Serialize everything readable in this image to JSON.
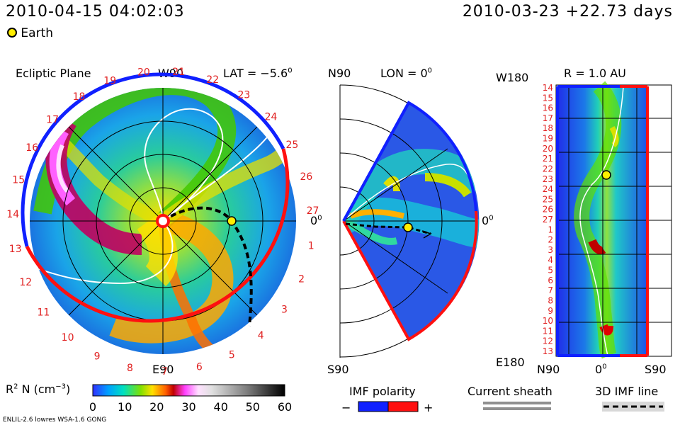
{
  "header": {
    "datetime": "2010-04-15 04:02:03",
    "reference": "2010-03-23 +22.73 days",
    "legend_earth": "Earth"
  },
  "panel_ecliptic": {
    "title": "Ecliptic Plane",
    "lat_label": "LAT = −5.6",
    "lat_sup": "0",
    "top_label": "W90",
    "bottom_label": "E90",
    "right_label": "0",
    "right_sup": "0",
    "carrington_labels": [
      "1",
      "2",
      "3",
      "4",
      "5",
      "6",
      "7",
      "8",
      "9",
      "10",
      "11",
      "12",
      "13",
      "14",
      "15",
      "16",
      "17",
      "18",
      "19",
      "20",
      "21",
      "22",
      "23",
      "24",
      "25",
      "26",
      "27"
    ]
  },
  "panel_meridional": {
    "top_left": "N90",
    "lon_label": "LON = 0",
    "lon_sup": "0",
    "right_label": "0",
    "right_sup": "0",
    "bottom_left": "S90"
  },
  "panel_shell": {
    "top_left": "W180",
    "title": "R = 1.0 AU",
    "bottom_left": "E180",
    "x_left": "N90",
    "x_mid": "0",
    "x_mid_sup": "0",
    "x_right": "S90",
    "y_labels": [
      "14",
      "15",
      "16",
      "17",
      "18",
      "19",
      "20",
      "21",
      "22",
      "23",
      "24",
      "25",
      "26",
      "27",
      "1",
      "2",
      "3",
      "4",
      "5",
      "6",
      "7",
      "8",
      "9",
      "10",
      "11",
      "12",
      "13"
    ]
  },
  "colorbar": {
    "label": "R",
    "label_sup": "2",
    "label_rest": " N (cm",
    "label_sup2": "−3",
    "label_end": ")",
    "ticks": [
      "0",
      "10",
      "20",
      "30",
      "40",
      "50",
      "60"
    ]
  },
  "legends": {
    "imf_title": "IMF polarity",
    "imf_minus": "−",
    "imf_plus": "+",
    "sheath_title": "Current sheath",
    "imf3d_title": "3D IMF line"
  },
  "footer": {
    "model": "ENLIL-2.6 lowres WSA-1.6 GONG"
  },
  "colors": {
    "negative": "#1020ff",
    "positive": "#ff1010",
    "earth": "#ffee00",
    "label_red": "#e02020"
  },
  "chart_data": {
    "type": "heatmap",
    "variable": "R^2 N",
    "colorbar_range": [
      0,
      60
    ],
    "colorbar_ticks": [
      0,
      10,
      20,
      30,
      40,
      50,
      60
    ],
    "earth_position": {
      "r_au": 1.0,
      "lat_deg": -5.6,
      "lon_deg": 0
    }
  }
}
